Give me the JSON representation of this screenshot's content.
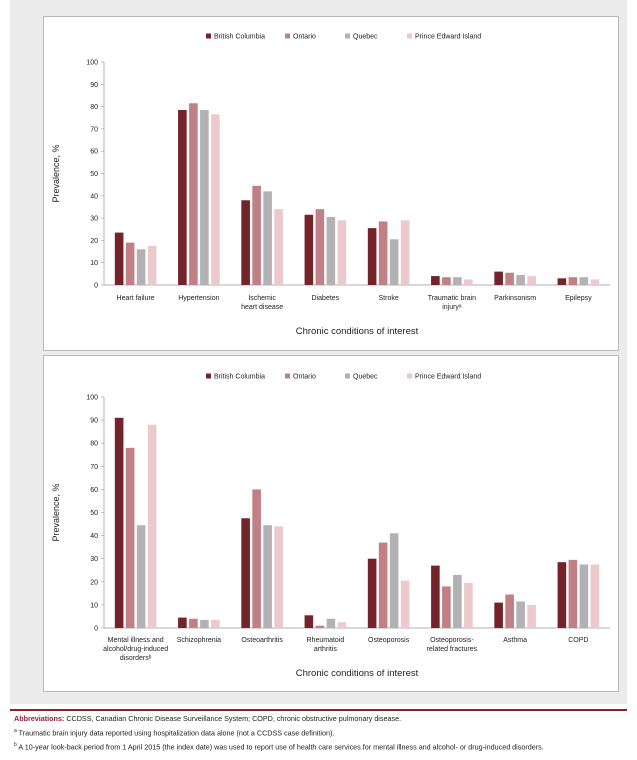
{
  "legend": [
    "British Columbia",
    "Ontario",
    "Quebec",
    "Prince Edward Island"
  ],
  "colors": {
    "British Columbia": "#74232b",
    "Ontario": "#c08086",
    "Quebec": "#b2b2b2",
    "Prince Edward Island": "#ebc9cc"
  },
  "chart_data": [
    {
      "type": "bar",
      "title": "",
      "xlabel": "Chronic conditions of interest",
      "ylabel": "Prevalence, %",
      "ylim": [
        0,
        100
      ],
      "yticks": [
        0,
        10,
        20,
        30,
        40,
        50,
        60,
        70,
        80,
        90,
        100
      ],
      "legend_position": "top",
      "categories": [
        [
          "Heart failure"
        ],
        [
          "Hypertension"
        ],
        [
          "Ischemic",
          "heart disease"
        ],
        [
          "Diabetes"
        ],
        [
          "Stroke"
        ],
        [
          "Traumatic brain",
          "injuryᵃ"
        ],
        [
          "Parkinsonism"
        ],
        [
          "Epilepsy"
        ]
      ],
      "series": [
        {
          "name": "British Columbia",
          "values": [
            23.5,
            78.5,
            38,
            31.5,
            25.5,
            4,
            6,
            3
          ]
        },
        {
          "name": "Ontario",
          "values": [
            19,
            81.5,
            44.5,
            34,
            28.5,
            3.5,
            5.5,
            3.5
          ]
        },
        {
          "name": "Quebec",
          "values": [
            16,
            78.5,
            42,
            30.5,
            20.5,
            3.5,
            4.5,
            3.5
          ]
        },
        {
          "name": "Prince Edward Island",
          "values": [
            17.5,
            76.5,
            34,
            29,
            29,
            2.5,
            4,
            2.5
          ]
        }
      ]
    },
    {
      "type": "bar",
      "title": "",
      "xlabel": "Chronic conditions of interest",
      "ylabel": "Prevalence, %",
      "ylim": [
        0,
        100
      ],
      "yticks": [
        0,
        10,
        20,
        30,
        40,
        50,
        60,
        70,
        80,
        90,
        100
      ],
      "legend_position": "top",
      "categories": [
        [
          "Mental illness and",
          "alcohol/drug-induced",
          "disordersᵇ"
        ],
        [
          "Schizophrenia"
        ],
        [
          "Osteoarthritis"
        ],
        [
          "Rheumatoid",
          "arthritis"
        ],
        [
          "Osteoporosis"
        ],
        [
          "Osteoporosis-",
          "related fractures"
        ],
        [
          "Asthma"
        ],
        [
          "COPD"
        ]
      ],
      "series": [
        {
          "name": "British Columbia",
          "values": [
            91,
            4.5,
            47.5,
            5.5,
            30,
            27,
            11,
            28.5
          ]
        },
        {
          "name": "Ontario",
          "values": [
            78,
            4,
            60,
            1,
            37,
            18,
            14.5,
            29.5
          ]
        },
        {
          "name": "Quebec",
          "values": [
            44.5,
            3.5,
            44.5,
            4,
            41,
            23,
            11.5,
            27.5
          ]
        },
        {
          "name": "Prince Edward Island",
          "values": [
            88,
            3.5,
            44,
            2.5,
            20.5,
            19.5,
            10,
            27.5
          ]
        }
      ]
    }
  ],
  "footnotes": {
    "abbrev_label": "Abbreviations:",
    "abbrev_text": " CCDSS, Canadian Chronic Disease Surveillance System; COPD, chronic obstructive pulmonary disease.",
    "note_a_marker": "a",
    "note_a": " Traumatic brain injury data reported using hospitalization data alone (not a CCDSS case definition).",
    "note_b_marker": "b",
    "note_b": " A 10-year look-back period from 1 April 2015 (the index date) was used to report use of health care services for mental illness and alcohol- or drug-induced disorders."
  }
}
